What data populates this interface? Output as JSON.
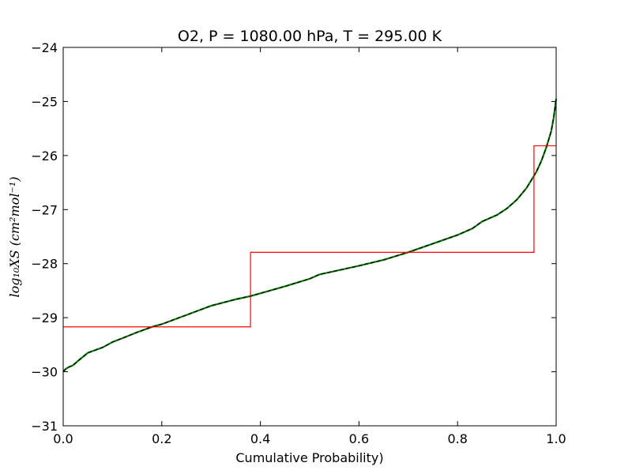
{
  "chart_data": {
    "type": "line",
    "title": "O2, P = 1080.00 hPa, T = 295.00 K",
    "xlabel": "Cumulative Probability)",
    "ylabel": "log₁₀XS (cm²mol⁻¹)",
    "xlim": [
      0.0,
      1.0
    ],
    "ylim": [
      -31,
      -24
    ],
    "xticks": [
      "0.0",
      "0.2",
      "0.4",
      "0.6",
      "0.8",
      "1.0"
    ],
    "xtick_values": [
      0.0,
      0.2,
      0.4,
      0.6,
      0.8,
      1.0
    ],
    "yticks": [
      "−24",
      "−25",
      "−26",
      "−27",
      "−28",
      "−29",
      "−30",
      "−31"
    ],
    "ytick_values": [
      -24,
      -25,
      -26,
      -27,
      -28,
      -29,
      -30,
      -31
    ],
    "grid": false,
    "series": [
      {
        "color": "#008000",
        "style": "solid",
        "x": [
          0.0,
          0.005,
          0.01,
          0.02,
          0.03,
          0.05,
          0.08,
          0.1,
          0.12,
          0.15,
          0.18,
          0.2,
          0.25,
          0.3,
          0.35,
          0.38,
          0.4,
          0.45,
          0.5,
          0.52,
          0.55,
          0.6,
          0.65,
          0.7,
          0.75,
          0.8,
          0.83,
          0.85,
          0.88,
          0.9,
          0.92,
          0.94,
          0.95,
          0.96,
          0.97,
          0.98,
          0.99,
          0.995,
          1.0
        ],
        "y": [
          -30.0,
          -29.95,
          -29.92,
          -29.88,
          -29.8,
          -29.65,
          -29.55,
          -29.45,
          -29.38,
          -29.27,
          -29.17,
          -29.12,
          -28.95,
          -28.78,
          -28.66,
          -28.6,
          -28.55,
          -28.42,
          -28.28,
          -28.2,
          -28.14,
          -28.04,
          -27.93,
          -27.79,
          -27.63,
          -27.47,
          -27.35,
          -27.22,
          -27.1,
          -26.98,
          -26.82,
          -26.6,
          -26.45,
          -26.3,
          -26.1,
          -25.85,
          -25.55,
          -25.3,
          -24.95
        ]
      },
      {
        "color": "#000000",
        "style": "dashed",
        "x": [
          0.0,
          0.005,
          0.01,
          0.02,
          0.03,
          0.05,
          0.08,
          0.1,
          0.12,
          0.15,
          0.18,
          0.2,
          0.25,
          0.3,
          0.35,
          0.38,
          0.4,
          0.45,
          0.5,
          0.52,
          0.55,
          0.6,
          0.65,
          0.7,
          0.75,
          0.8,
          0.83,
          0.85,
          0.88,
          0.9,
          0.92,
          0.94,
          0.95,
          0.96,
          0.97,
          0.98,
          0.99,
          0.995,
          1.0
        ],
        "y": [
          -30.0,
          -29.95,
          -29.92,
          -29.88,
          -29.8,
          -29.65,
          -29.55,
          -29.45,
          -29.38,
          -29.27,
          -29.17,
          -29.12,
          -28.95,
          -28.78,
          -28.66,
          -28.6,
          -28.55,
          -28.42,
          -28.28,
          -28.2,
          -28.14,
          -28.04,
          -27.93,
          -27.79,
          -27.63,
          -27.47,
          -27.35,
          -27.22,
          -27.1,
          -26.98,
          -26.82,
          -26.6,
          -26.45,
          -26.3,
          -26.1,
          -25.85,
          -25.55,
          -25.3,
          -24.95
        ]
      },
      {
        "color": "#ff0000",
        "style": "step",
        "x": [
          0.0,
          0.38,
          0.38,
          0.955,
          0.955,
          1.0
        ],
        "y": [
          -29.17,
          -29.17,
          -27.79,
          -27.79,
          -25.82,
          -25.82
        ]
      }
    ]
  }
}
